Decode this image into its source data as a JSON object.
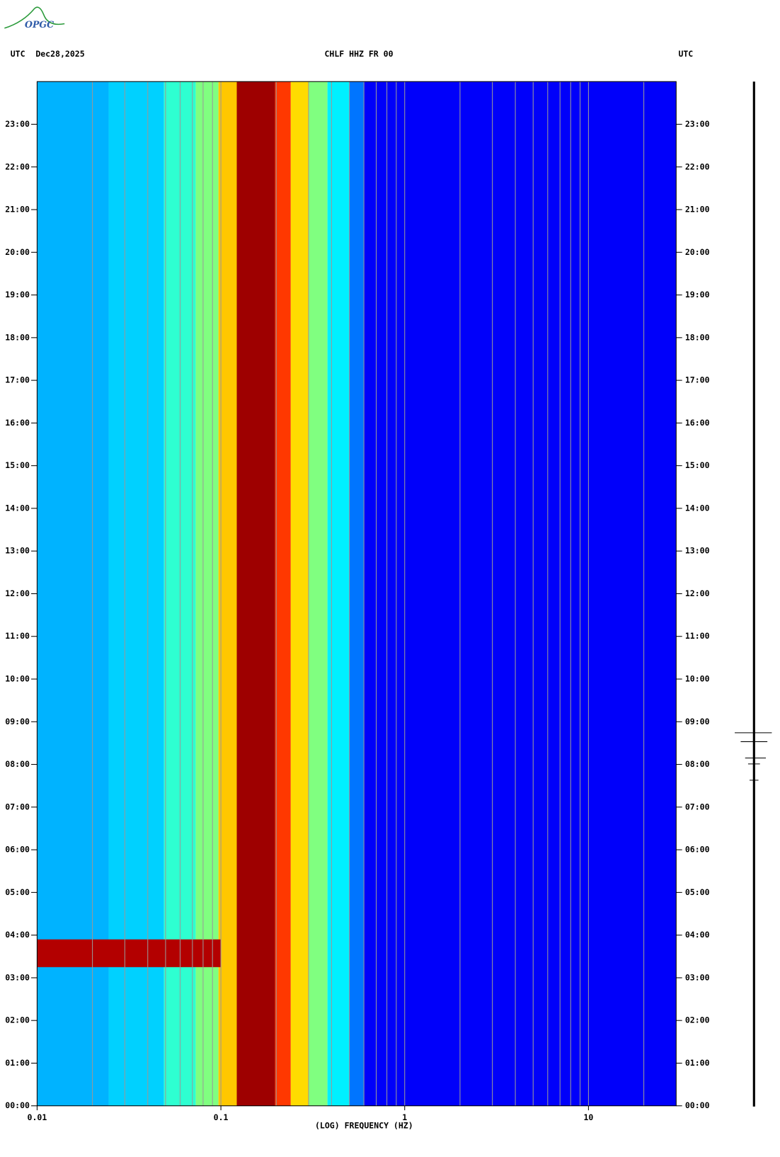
{
  "chart_data": {
    "type": "spectrogram",
    "logo": "OPGC",
    "title": "CHLF HHZ FR 00",
    "left_label": "UTC",
    "date": "Dec28,2025",
    "right_label": "UTC",
    "xlabel": "(LOG) FREQUENCY (HZ)",
    "xscale": "log",
    "xlim": [
      0.01,
      30
    ],
    "xticks": [
      0.01,
      0.1,
      1,
      10
    ],
    "xgrid": [
      0.02,
      0.03,
      0.04,
      0.05,
      0.06,
      0.07,
      0.08,
      0.09,
      0.1,
      0.2,
      0.3,
      0.4,
      0.5,
      0.6,
      0.7,
      0.8,
      0.9,
      1,
      2,
      3,
      4,
      5,
      6,
      7,
      8,
      9,
      10,
      20
    ],
    "ylim": [
      0,
      24
    ],
    "yticks": [
      {
        "value": 0,
        "label": "00:00"
      },
      {
        "value": 1,
        "label": "01:00"
      },
      {
        "value": 2,
        "label": "02:00"
      },
      {
        "value": 3,
        "label": "03:00"
      },
      {
        "value": 4,
        "label": "04:00"
      },
      {
        "value": 5,
        "label": "05:00"
      },
      {
        "value": 6,
        "label": "06:00"
      },
      {
        "value": 7,
        "label": "07:00"
      },
      {
        "value": 8,
        "label": "08:00"
      },
      {
        "value": 9,
        "label": "09:00"
      },
      {
        "value": 10,
        "label": "10:00"
      },
      {
        "value": 11,
        "label": "11:00"
      },
      {
        "value": 12,
        "label": "12:00"
      },
      {
        "value": 13,
        "label": "13:00"
      },
      {
        "value": 14,
        "label": "14:00"
      },
      {
        "value": 15,
        "label": "15:00"
      },
      {
        "value": 16,
        "label": "16:00"
      },
      {
        "value": 17,
        "label": "17:00"
      },
      {
        "value": 18,
        "label": "18:00"
      },
      {
        "value": 19,
        "label": "19:00"
      },
      {
        "value": 20,
        "label": "20:00"
      },
      {
        "value": 21,
        "label": "21:00"
      },
      {
        "value": 22,
        "label": "22:00"
      },
      {
        "value": 23,
        "label": "23:00"
      }
    ],
    "colormap": "jet",
    "edges": [
      0.01,
      0.0245,
      0.049,
      0.073,
      0.097,
      0.122,
      0.197,
      0.24,
      0.3,
      0.38,
      0.5,
      0.6,
      30
    ],
    "levels": [
      0.3,
      0.33,
      0.42,
      0.5,
      0.68,
      0.97,
      0.82,
      0.66,
      0.5,
      0.36,
      0.24,
      0.12
    ],
    "events": [
      {
        "t": [
          3.25,
          3.9
        ],
        "f": [
          0.01,
          0.1
        ],
        "level": 0.95
      }
    ]
  }
}
